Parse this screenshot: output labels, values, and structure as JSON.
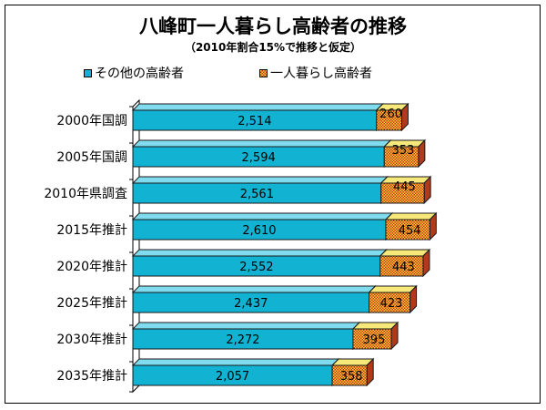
{
  "title": "八峰町一人暮らし高齢者の推移",
  "subtitle": "（2010年割合15%で推移と仮定）",
  "colors": {
    "other_front": "#12b3d2",
    "other_top": "#7fdcee",
    "other_side": "#0a8aa3",
    "single_a": "#d22b0c",
    "single_b": "#f2dc3c",
    "single_top": "#f6e97a",
    "single_side": "#b03a1a"
  },
  "chart_data": {
    "type": "bar",
    "orientation": "horizontal",
    "stacked": true,
    "three_d": true,
    "categories": [
      "2000年国調",
      "2005年国調",
      "2010年県調査",
      "2015年推計",
      "2020年推計",
      "2025年推計",
      "2030年推計",
      "2035年推計"
    ],
    "series": [
      {
        "name": "その他の高齢者",
        "values": [
          2514,
          2594,
          2561,
          2610,
          2552,
          2437,
          2272,
          2057
        ],
        "labels": [
          "2,514",
          "2,594",
          "2,561",
          "2,610",
          "2,552",
          "2,437",
          "2,272",
          "2,057"
        ]
      },
      {
        "name": "一人暮らし高齢者",
        "values": [
          260,
          353,
          445,
          454,
          443,
          423,
          395,
          358
        ],
        "labels": [
          "260",
          "353",
          "445",
          "454",
          "443",
          "423",
          "395",
          "358"
        ]
      }
    ],
    "xlim": [
      0,
      3500
    ],
    "grid": false,
    "legend_position": "top"
  }
}
